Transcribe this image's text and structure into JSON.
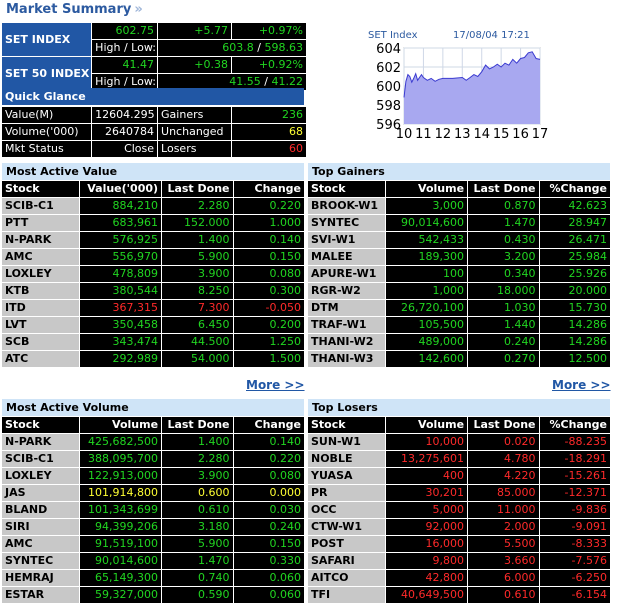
{
  "title": "Market Summary",
  "title_chevron": "»",
  "indices": [
    {
      "name": "SET INDEX",
      "value": "602.75",
      "change": "+5.77",
      "pct": "+0.97%",
      "hl_label": "High / Low:",
      "high": "603.8",
      "low": "598.63"
    },
    {
      "name": "SET 50 INDEX",
      "value": "41.47",
      "change": "+0.38",
      "pct": "+0.92%",
      "hl_label": "High / Low:",
      "high": "41.55",
      "low": "41.22"
    }
  ],
  "quick_glance": {
    "title": "Quick Glance",
    "rows": [
      {
        "l1": "Value(M)",
        "v1": "12604.295",
        "l2": "Gainers",
        "v2": "236"
      },
      {
        "l1": "Volume('000)",
        "v1": "2640784",
        "l2": "Unchanged",
        "v2": "68"
      },
      {
        "l1": "Mkt Status",
        "v1": "Close",
        "l2": "Losers",
        "v2": "60"
      }
    ]
  },
  "index_chart": {
    "label": "SET Index",
    "datetime": "17/08/04 17:21",
    "chart_data": {
      "type": "area",
      "title": "SET Index",
      "x_ticks": [
        "10",
        "11",
        "12",
        "13",
        "14",
        "15",
        "16",
        "17"
      ],
      "y_ticks": [
        "596",
        "598",
        "600",
        "602",
        "604"
      ],
      "ylim": [
        596,
        604
      ],
      "xlim": [
        10,
        17
      ],
      "x": [
        10.0,
        10.1,
        10.2,
        10.3,
        10.4,
        10.5,
        10.6,
        10.7,
        10.8,
        10.9,
        11.0,
        11.2,
        11.4,
        11.6,
        11.8,
        12.0,
        12.5,
        13.0,
        13.2,
        13.4,
        13.6,
        13.8,
        14.0,
        14.2,
        14.4,
        14.6,
        14.8,
        15.0,
        15.2,
        15.4,
        15.6,
        15.8,
        16.0,
        16.2,
        16.4,
        16.6,
        16.8,
        17.0
      ],
      "y": [
        598.8,
        600.5,
        601.2,
        601.0,
        600.4,
        600.8,
        601.3,
        600.6,
        600.9,
        601.2,
        600.9,
        600.6,
        600.8,
        600.5,
        600.7,
        600.8,
        600.8,
        600.9,
        600.6,
        600.9,
        601.2,
        601.0,
        601.5,
        602.2,
        601.8,
        602.0,
        602.3,
        602.0,
        602.4,
        602.2,
        602.8,
        602.4,
        602.9,
        603.0,
        603.5,
        603.6,
        602.9,
        602.8
      ],
      "grid": true
    }
  },
  "panels": [
    {
      "title": "Most Active Value",
      "columns": [
        "Stock",
        "Value('000)",
        "Last Done",
        "Change"
      ],
      "more": "More >>",
      "rows": [
        {
          "stock": "SCIB-C1",
          "a": "884,210",
          "b": "2.280",
          "c": "0.220",
          "color": "gr"
        },
        {
          "stock": "PTT",
          "a": "683,961",
          "b": "152.000",
          "c": "1.000",
          "color": "gr"
        },
        {
          "stock": "N-PARK",
          "a": "576,925",
          "b": "1.400",
          "c": "0.140",
          "color": "gr"
        },
        {
          "stock": "AMC",
          "a": "556,970",
          "b": "5.900",
          "c": "0.150",
          "color": "gr"
        },
        {
          "stock": "LOXLEY",
          "a": "478,809",
          "b": "3.900",
          "c": "0.080",
          "color": "gr"
        },
        {
          "stock": "KTB",
          "a": "380,544",
          "b": "8.250",
          "c": "0.300",
          "color": "gr"
        },
        {
          "stock": "ITD",
          "a": "367,315",
          "b": "7.300",
          "c": "-0.050",
          "color": "rd"
        },
        {
          "stock": "LVT",
          "a": "350,458",
          "b": "6.450",
          "c": "0.200",
          "color": "gr"
        },
        {
          "stock": "SCB",
          "a": "343,474",
          "b": "44.500",
          "c": "1.250",
          "color": "gr"
        },
        {
          "stock": "ATC",
          "a": "292,989",
          "b": "54.000",
          "c": "1.500",
          "color": "gr"
        }
      ]
    },
    {
      "title": "Top Gainers",
      "columns": [
        "Stock",
        "Volume",
        "Last Done",
        "%Change"
      ],
      "more": "More >>",
      "rows": [
        {
          "stock": "BROOK-W1",
          "a": "3,000",
          "b": "0.870",
          "c": "42.623",
          "color": "gr"
        },
        {
          "stock": "SYNTEC",
          "a": "90,014,600",
          "b": "1.470",
          "c": "28.947",
          "color": "gr"
        },
        {
          "stock": "SVI-W1",
          "a": "542,433",
          "b": "0.430",
          "c": "26.471",
          "color": "gr"
        },
        {
          "stock": "MALEE",
          "a": "189,300",
          "b": "3.200",
          "c": "25.984",
          "color": "gr"
        },
        {
          "stock": "APURE-W1",
          "a": "100",
          "b": "0.340",
          "c": "25.926",
          "color": "gr"
        },
        {
          "stock": "RGR-W2",
          "a": "1,000",
          "b": "18.000",
          "c": "20.000",
          "color": "gr"
        },
        {
          "stock": "DTM",
          "a": "26,720,100",
          "b": "1.030",
          "c": "15.730",
          "color": "gr"
        },
        {
          "stock": "TRAF-W1",
          "a": "105,500",
          "b": "1.440",
          "c": "14.286",
          "color": "gr"
        },
        {
          "stock": "THANI-W2",
          "a": "489,000",
          "b": "0.240",
          "c": "14.286",
          "color": "gr"
        },
        {
          "stock": "THANI-W3",
          "a": "142,600",
          "b": "0.270",
          "c": "12.500",
          "color": "gr"
        }
      ]
    },
    {
      "title": "Most Active Volume",
      "columns": [
        "Stock",
        "Volume",
        "Last Done",
        "Change"
      ],
      "more": "",
      "rows": [
        {
          "stock": "N-PARK",
          "a": "425,682,500",
          "b": "1.400",
          "c": "0.140",
          "color": "gr"
        },
        {
          "stock": "SCIB-C1",
          "a": "388,095,700",
          "b": "2.280",
          "c": "0.220",
          "color": "gr"
        },
        {
          "stock": "LOXLEY",
          "a": "122,913,000",
          "b": "3.900",
          "c": "0.080",
          "color": "gr"
        },
        {
          "stock": "JAS",
          "a": "101,914,800",
          "b": "0.600",
          "c": "0.000",
          "color": "yl"
        },
        {
          "stock": "BLAND",
          "a": "101,343,699",
          "b": "0.610",
          "c": "0.030",
          "color": "gr"
        },
        {
          "stock": "SIRI",
          "a": "94,399,206",
          "b": "3.180",
          "c": "0.240",
          "color": "gr"
        },
        {
          "stock": "AMC",
          "a": "91,519,100",
          "b": "5.900",
          "c": "0.150",
          "color": "gr"
        },
        {
          "stock": "SYNTEC",
          "a": "90,014,600",
          "b": "1.470",
          "c": "0.330",
          "color": "gr"
        },
        {
          "stock": "HEMRAJ",
          "a": "65,149,300",
          "b": "0.740",
          "c": "0.060",
          "color": "gr"
        },
        {
          "stock": "ESTAR",
          "a": "59,327,000",
          "b": "0.590",
          "c": "0.060",
          "color": "gr"
        }
      ]
    },
    {
      "title": "Top Losers",
      "columns": [
        "Stock",
        "Volume",
        "Last Done",
        "%Change"
      ],
      "more": "",
      "rows": [
        {
          "stock": "SUN-W1",
          "a": "10,000",
          "b": "0.020",
          "c": "-88.235",
          "color": "rd"
        },
        {
          "stock": "NOBLE",
          "a": "13,275,601",
          "b": "4.780",
          "c": "-18.291",
          "color": "rd"
        },
        {
          "stock": "YUASA",
          "a": "400",
          "b": "4.220",
          "c": "-15.261",
          "color": "rd"
        },
        {
          "stock": "PR",
          "a": "30,201",
          "b": "85.000",
          "c": "-12.371",
          "color": "rd"
        },
        {
          "stock": "OCC",
          "a": "5,000",
          "b": "11.000",
          "c": "-9.836",
          "color": "rd"
        },
        {
          "stock": "CTW-W1",
          "a": "92,000",
          "b": "2.000",
          "c": "-9.091",
          "color": "rd"
        },
        {
          "stock": "POST",
          "a": "16,000",
          "b": "5.500",
          "c": "-8.333",
          "color": "rd"
        },
        {
          "stock": "SAFARI",
          "a": "9,800",
          "b": "3.660",
          "c": "-7.576",
          "color": "rd"
        },
        {
          "stock": "AITCO",
          "a": "42,800",
          "b": "6.000",
          "c": "-6.250",
          "color": "rd"
        },
        {
          "stock": "TFI",
          "a": "40,649,500",
          "b": "0.610",
          "c": "-6.154",
          "color": "rd"
        }
      ]
    }
  ]
}
